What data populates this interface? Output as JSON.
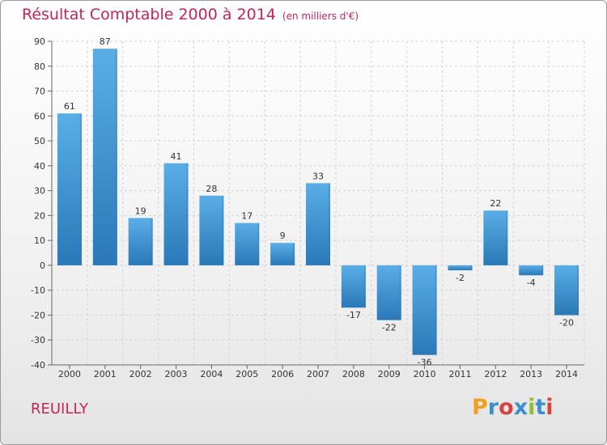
{
  "header": {
    "title": "Résultat Comptable 2000 à 2014",
    "subtitle": "(en milliers d'€)"
  },
  "footer": {
    "commune": "REUILLY",
    "logo_text": "Proxiti",
    "logo_colors": [
      "#f0a020",
      "#3a8fd0",
      "#d94040",
      "#3a8fd0",
      "#90c030",
      "#3a8fd0",
      "#d94040"
    ]
  },
  "colors": {
    "bar_light": "#5aaee6",
    "bar_dark": "#2a78b8",
    "title": "#c4245a"
  },
  "chart_data": {
    "type": "bar",
    "title": "Résultat Comptable 2000 à 2014 (en milliers d'€)",
    "xlabel": "",
    "ylabel": "",
    "categories": [
      "2000",
      "2001",
      "2002",
      "2003",
      "2004",
      "2005",
      "2006",
      "2007",
      "2008",
      "2009",
      "2010",
      "2011",
      "2012",
      "2013",
      "2014"
    ],
    "values": [
      61,
      87,
      19,
      41,
      28,
      17,
      9,
      33,
      -17,
      -22,
      -36,
      -2,
      22,
      -4,
      -20
    ],
    "labels": [
      "61",
      "87",
      "19",
      "41",
      "28",
      "17",
      "9",
      "33",
      "-17",
      "-22",
      "-36",
      "-2",
      "22",
      "-4",
      "-20"
    ],
    "ylim": [
      -40,
      90
    ],
    "yticks": [
      90,
      80,
      70,
      60,
      50,
      40,
      30,
      20,
      10,
      0,
      -10,
      -20,
      -30,
      -40
    ],
    "grid": true
  }
}
